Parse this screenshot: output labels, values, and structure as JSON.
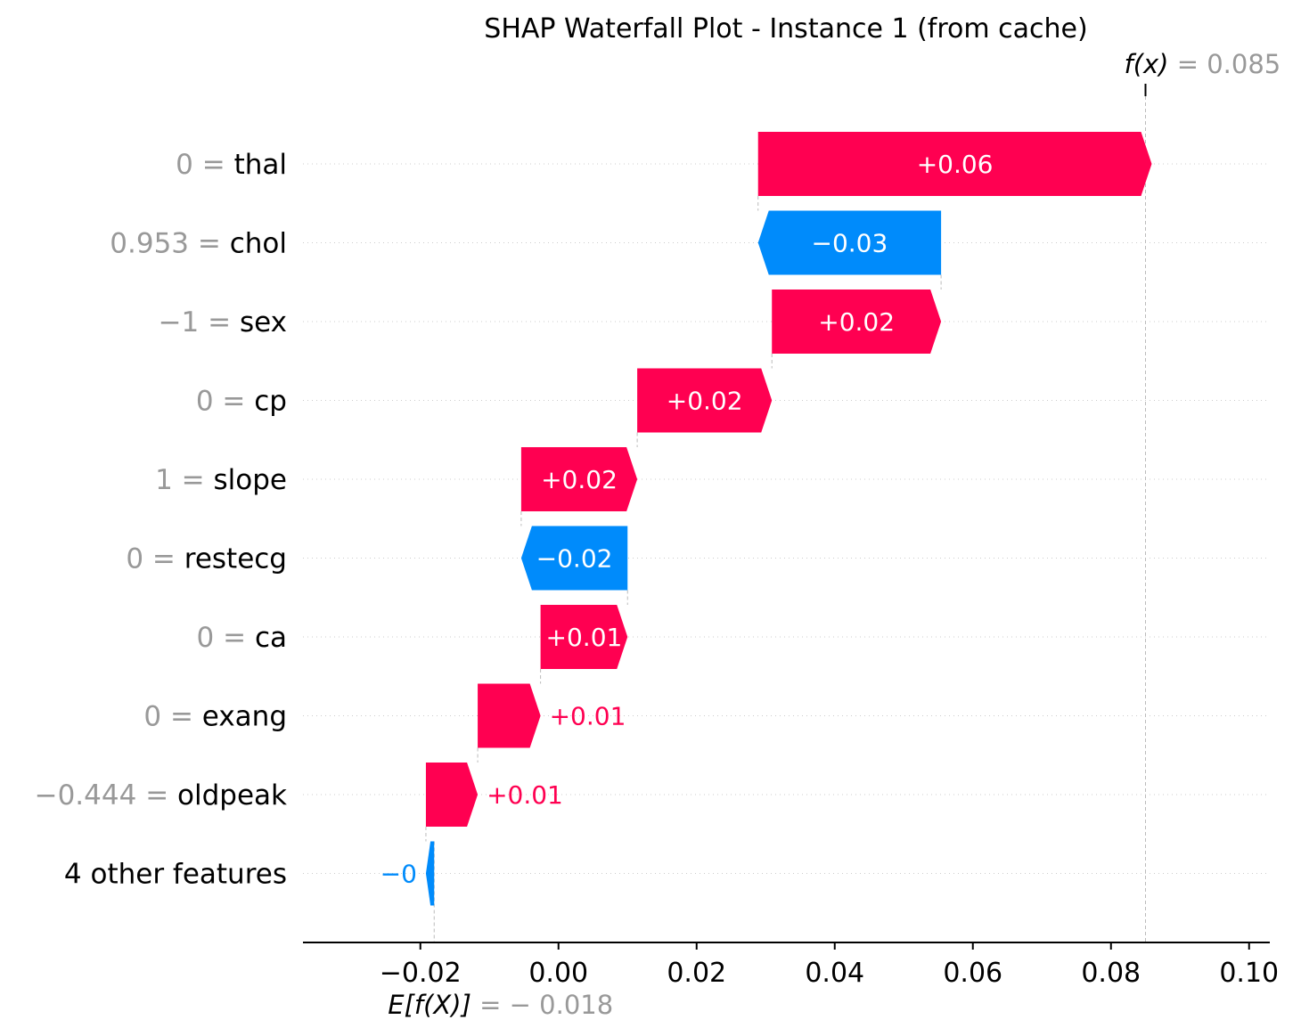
{
  "chart_data": {
    "type": "waterfall",
    "title": "SHAP Waterfall Plot - Instance 1 (from cache)",
    "base_value": -0.018,
    "output_value": 0.085,
    "fx_label": "f(x)",
    "fx_value_text": "0.085",
    "ex_label": "E[f(X)]",
    "ex_value_text": "−0.018",
    "xlim": [
      -0.037,
      0.103
    ],
    "x_ticks": [
      -0.02,
      0.0,
      0.02,
      0.04,
      0.06,
      0.08,
      0.1
    ],
    "x_tick_labels": [
      "−0.02",
      "0.00",
      "0.02",
      "0.04",
      "0.06",
      "0.08",
      "0.10"
    ],
    "colors": {
      "positive": "#ff0051",
      "negative": "#008bfb",
      "gray": "#999999"
    },
    "features": [
      {
        "value": "0",
        "name": "thal",
        "shap": 0.057,
        "label": "+0.06"
      },
      {
        "value": "0.953",
        "name": "chol",
        "shap": -0.0265,
        "label": "−0.03"
      },
      {
        "value": "−1",
        "name": "sex",
        "shap": 0.0245,
        "label": "+0.02"
      },
      {
        "value": "0",
        "name": "cp",
        "shap": 0.0195,
        "label": "+0.02"
      },
      {
        "value": "1",
        "name": "slope",
        "shap": 0.0168,
        "label": "+0.02"
      },
      {
        "value": "0",
        "name": "restecg",
        "shap": -0.0154,
        "label": "−0.02"
      },
      {
        "value": "0",
        "name": "ca",
        "shap": 0.0126,
        "label": "+0.01"
      },
      {
        "value": "0",
        "name": "exang",
        "shap": 0.0091,
        "label": "+0.01"
      },
      {
        "value": "−0.444",
        "name": "oldpeak",
        "shap": 0.0075,
        "label": "+0.01"
      },
      {
        "value": "",
        "name": "4 other features",
        "shap": -0.0012,
        "label": "−0"
      }
    ]
  }
}
